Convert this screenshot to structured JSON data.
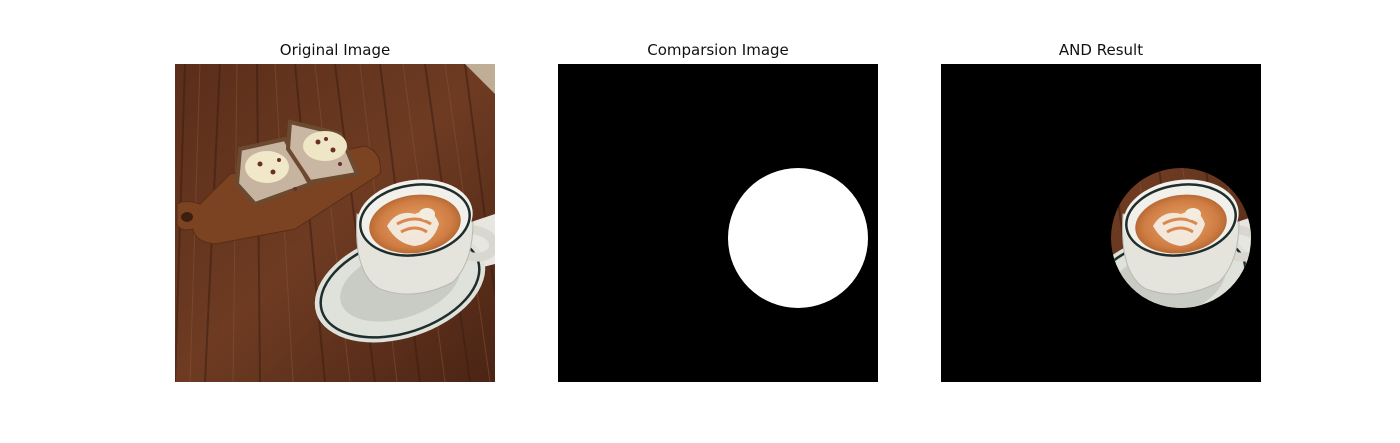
{
  "figure": {
    "panels": [
      {
        "title": "Original Image"
      },
      {
        "title": "Comparsion Image"
      },
      {
        "title": "AND Result"
      }
    ]
  },
  "colors": {
    "wood_dark": "#4a2515",
    "wood_mid": "#6b3a22",
    "wood_light": "#8a5432",
    "board": "#7a4322",
    "mask_black": "#000000",
    "mask_white": "#ffffff",
    "cup_white": "#e9e8e1",
    "coffee_foam": "#d9894f",
    "latte_art": "#f2eadf",
    "saucer": "#dcdfd7",
    "saucer_rim": "#1d2a2a"
  },
  "icons": {
    "photo": "latte-and-bread-photo-icon",
    "mask": "white-circle-mask-icon",
    "result": "masked-cup-icon"
  }
}
